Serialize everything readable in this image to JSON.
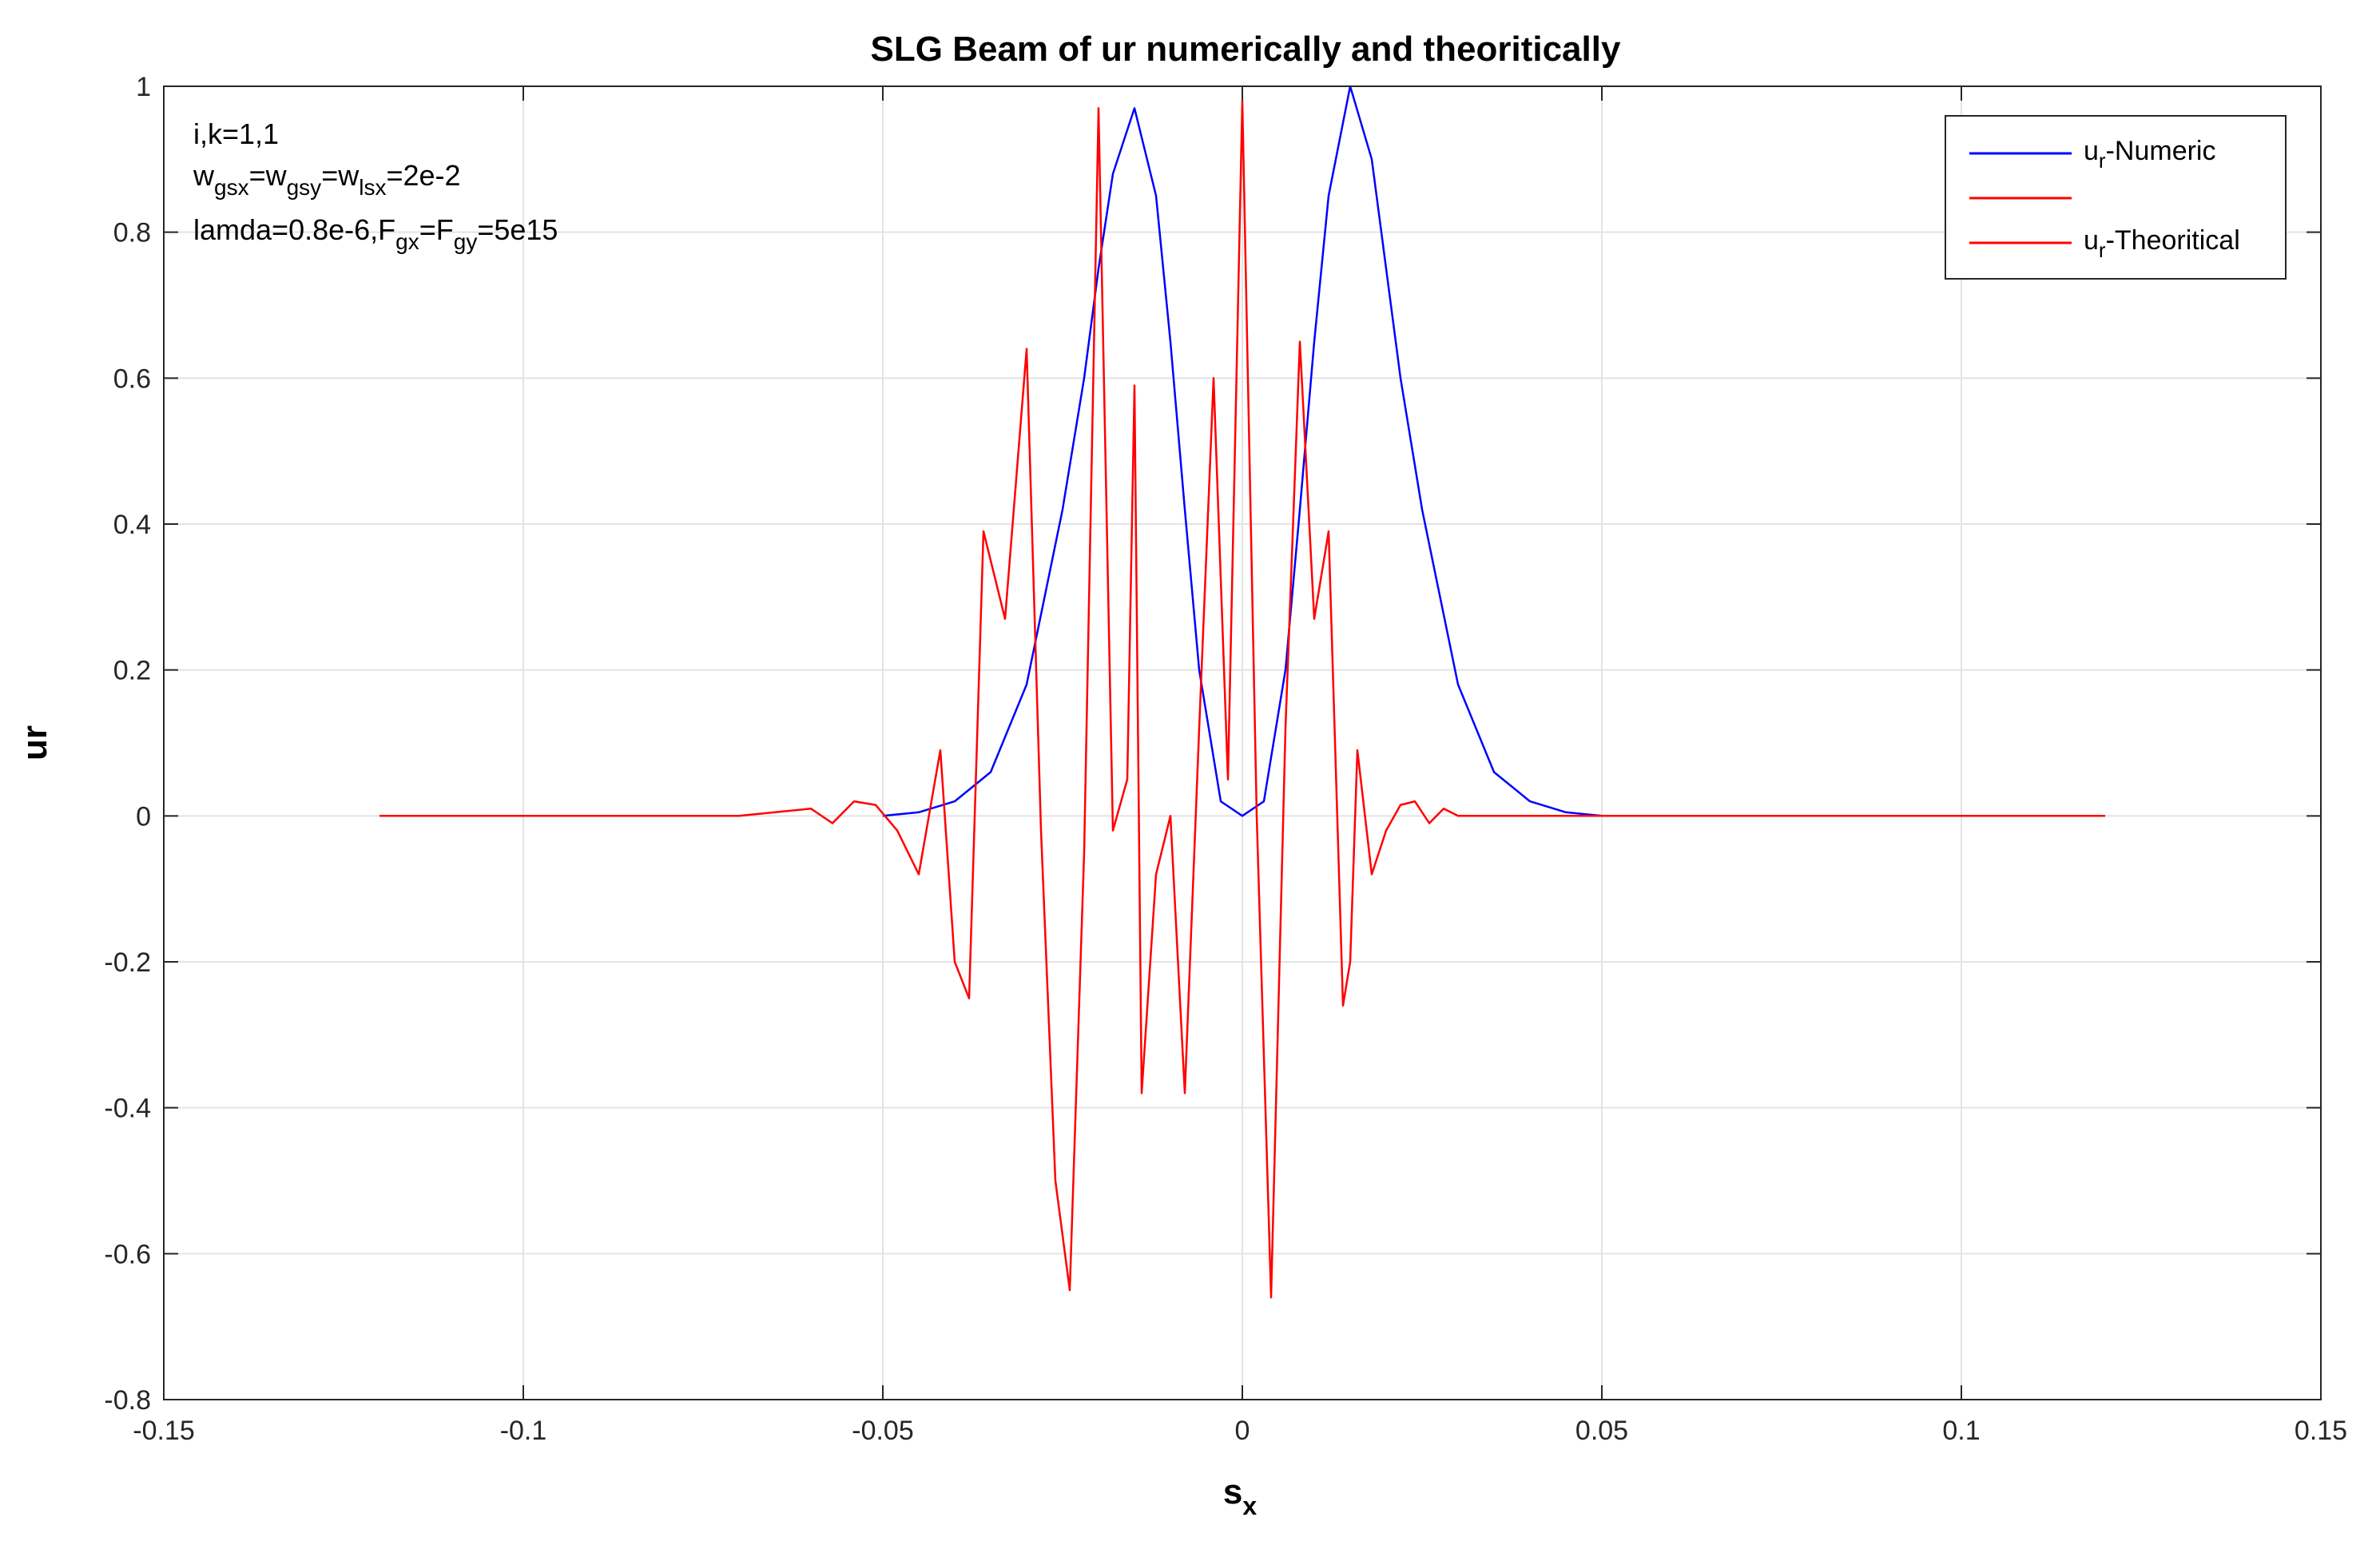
{
  "chart_data": {
    "type": "line",
    "title": "SLG Beam of ur numerically and theoritically",
    "xlabel": "s",
    "xlabel_sub": "x",
    "ylabel": "ur",
    "xlim": [
      -0.15,
      0.15
    ],
    "ylim": [
      -0.8,
      1
    ],
    "xticks": [
      -0.15,
      -0.1,
      -0.05,
      0,
      0.05,
      0.1,
      0.15
    ],
    "xtick_labels": [
      "-0.15",
      "-0.1",
      "-0.05",
      "0",
      "0.05",
      "0.1",
      "0.15"
    ],
    "yticks": [
      -0.8,
      -0.6,
      -0.4,
      -0.2,
      0,
      0.2,
      0.4,
      0.6,
      0.8,
      1
    ],
    "ytick_labels": [
      "-0.8",
      "-0.6",
      "-0.4",
      "-0.2",
      "0",
      "0.2",
      "0.4",
      "0.6",
      "0.8",
      "1"
    ],
    "grid": true,
    "legend_position": "top-right",
    "annotation": {
      "line1": "i,k=1,1",
      "line2": {
        "a": "w",
        "a_sub": "gsx",
        "b": "=w",
        "b_sub": "gsy",
        "c": "=w",
        "c_sub": "lsx",
        "d": "=2e-2"
      },
      "line3": {
        "a": "lamda=0.8e-6,F",
        "a_sub": "gx",
        "b": "=F",
        "b_sub": "gy",
        "c": "=5e15"
      }
    },
    "legend": [
      {
        "base": "u",
        "sub": "r",
        "rest": "-Numeric",
        "color": "#0000ff"
      },
      {
        "base": "",
        "sub": "",
        "rest": "",
        "color": "#ff0000"
      },
      {
        "base": "u",
        "sub": "r",
        "rest": "-Theoritical",
        "color": "#ff0000"
      }
    ],
    "series": [
      {
        "color": "#0000ff",
        "x": [
          -0.05,
          -0.045,
          -0.04,
          -0.035,
          -0.03,
          -0.025,
          -0.022,
          -0.02,
          -0.018,
          -0.015,
          -0.012,
          -0.01,
          -0.008,
          -0.006,
          -0.003,
          0,
          0.003,
          0.006,
          0.008,
          0.01,
          0.012,
          0.015,
          0.018,
          0.02,
          0.022,
          0.025,
          0.03,
          0.035,
          0.04,
          0.045,
          0.05
        ],
        "y": [
          0.0,
          0.005,
          0.02,
          0.06,
          0.18,
          0.42,
          0.6,
          0.75,
          0.88,
          0.97,
          0.85,
          0.65,
          0.42,
          0.2,
          0.02,
          0.0,
          0.02,
          0.2,
          0.42,
          0.65,
          0.85,
          1.0,
          0.9,
          0.75,
          0.6,
          0.42,
          0.18,
          0.06,
          0.02,
          0.005,
          0.0
        ]
      },
      {
        "color": "#ff0000",
        "x": [
          -0.12,
          -0.07,
          -0.06,
          -0.057,
          -0.054,
          -0.051,
          -0.048,
          -0.045,
          -0.042,
          -0.04,
          -0.038,
          -0.036,
          -0.033,
          -0.03,
          -0.028,
          -0.026,
          -0.024,
          -0.022,
          -0.02,
          -0.018,
          -0.016,
          -0.015,
          -0.014,
          -0.012,
          -0.01,
          -0.008,
          -0.006,
          -0.004,
          -0.002,
          0,
          0.002,
          0.004,
          0.006,
          0.008,
          0.01,
          0.012,
          0.014,
          0.015,
          0.016,
          0.018,
          0.02,
          0.022,
          0.024,
          0.026,
          0.028,
          0.03,
          0.033,
          0.036,
          0.038,
          0.04,
          0.042,
          0.045,
          0.048,
          0.051,
          0.054,
          0.057,
          0.06,
          0.07,
          0.12
        ],
        "y": [
          0,
          0,
          0.01,
          -0.01,
          0.02,
          0.015,
          -0.02,
          -0.08,
          0.09,
          -0.2,
          -0.25,
          0.39,
          0.27,
          0.64,
          -0.02,
          -0.5,
          -0.65,
          -0.05,
          0.97,
          -0.02,
          0.05,
          0.59,
          -0.38,
          -0.08,
          0.0,
          -0.38,
          0.12,
          0.6,
          0.05,
          0.98,
          0.0,
          -0.66,
          0.12,
          0.65,
          0.27,
          0.39,
          -0.26,
          -0.2,
          0.09,
          -0.08,
          -0.02,
          0.015,
          0.02,
          -0.01,
          0.01,
          0,
          0,
          0,
          0,
          0,
          0,
          0,
          0,
          0,
          0,
          0,
          0,
          0,
          0
        ]
      }
    ]
  }
}
